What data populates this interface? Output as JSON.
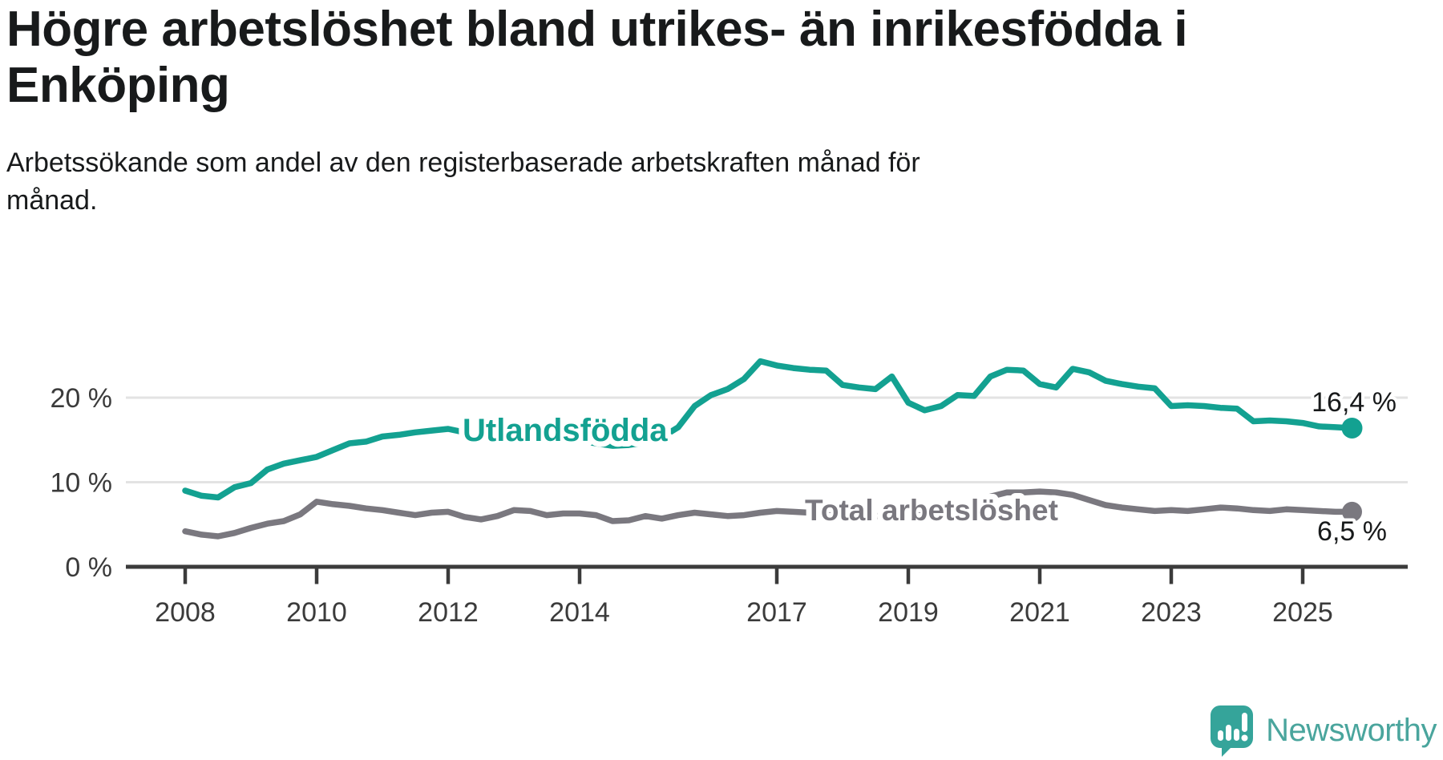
{
  "header": {
    "title_lines": [
      "Högre arbetslöshet bland utrikes- än inrikesfödda i",
      "Enköping"
    ],
    "subtitle_lines": [
      "Arbetssökande som andel av den registerbaserade arbetskraften månad för",
      "månad."
    ]
  },
  "chart_data": {
    "type": "line",
    "unit": "%",
    "x_start_year": 2008.0,
    "x_step_years": 0.25,
    "x_end_year": 2025.75,
    "ylim": [
      0,
      26
    ],
    "grid": "horizontal-light",
    "colors": {
      "accent_teal": "#13a191",
      "line_gray": "#7a787f",
      "axis": "#3b3b3b",
      "gridline": "#e3e3e3"
    },
    "y_ticks": [
      {
        "value": 0,
        "label": "0 %"
      },
      {
        "value": 10,
        "label": "10 %"
      },
      {
        "value": 20,
        "label": "20 %"
      }
    ],
    "x_ticks": [
      {
        "year": 2008,
        "label": "2008"
      },
      {
        "year": 2010,
        "label": "2010"
      },
      {
        "year": 2012,
        "label": "2012"
      },
      {
        "year": 2014,
        "label": "2014"
      },
      {
        "year": 2017,
        "label": "2017"
      },
      {
        "year": 2019,
        "label": "2019"
      },
      {
        "year": 2021,
        "label": "2021"
      },
      {
        "year": 2023,
        "label": "2023"
      },
      {
        "year": 2025,
        "label": "2025"
      }
    ],
    "series": [
      {
        "name": "utlandsfodda",
        "label": "Utlandsfödda",
        "color": "#13a191",
        "end_value": 16.4,
        "end_label": "16,4 %",
        "values": [
          9.0,
          8.4,
          8.2,
          9.4,
          9.9,
          11.5,
          12.2,
          12.6,
          13.0,
          13.8,
          14.6,
          14.8,
          15.4,
          15.6,
          15.9,
          16.1,
          16.3,
          15.9,
          15.6,
          15.9,
          16.2,
          16.0,
          15.6,
          15.3,
          14.9,
          14.6,
          14.3,
          14.4,
          14.7,
          15.3,
          16.5,
          19.0,
          20.3,
          21.0,
          22.2,
          24.3,
          23.8,
          23.5,
          23.3,
          23.2,
          21.5,
          21.2,
          21.0,
          22.5,
          19.4,
          18.5,
          19.0,
          20.3,
          20.2,
          22.5,
          23.3,
          23.2,
          21.6,
          21.2,
          23.4,
          23.0,
          22.0,
          21.6,
          21.3,
          21.1,
          19.0,
          19.1,
          19.0,
          18.8,
          18.7,
          17.2,
          17.3,
          17.2,
          17.0,
          16.6,
          16.5,
          16.4
        ]
      },
      {
        "name": "total-arbetsloshet",
        "label": "Total arbetslöshet",
        "color": "#7a787f",
        "end_value": 6.5,
        "end_label": "6,5 %",
        "values": [
          4.2,
          3.8,
          3.6,
          4.0,
          4.6,
          5.1,
          5.4,
          6.2,
          7.7,
          7.4,
          7.2,
          6.9,
          6.7,
          6.4,
          6.1,
          6.4,
          6.5,
          5.9,
          5.6,
          6.0,
          6.7,
          6.6,
          6.1,
          6.3,
          6.3,
          6.1,
          5.4,
          5.5,
          6.0,
          5.7,
          6.1,
          6.4,
          6.2,
          6.0,
          6.1,
          6.4,
          6.6,
          6.5,
          6.4,
          6.3,
          6.2,
          6.1,
          6.0,
          6.1,
          6.1,
          6.2,
          6.3,
          6.5,
          7.0,
          8.3,
          8.8,
          8.8,
          8.9,
          8.8,
          8.5,
          7.9,
          7.3,
          7.0,
          6.8,
          6.6,
          6.7,
          6.6,
          6.8,
          7.0,
          6.9,
          6.7,
          6.6,
          6.8,
          6.7,
          6.6,
          6.5,
          6.5
        ]
      }
    ]
  },
  "footer": {
    "brand": "Newsworthy"
  }
}
